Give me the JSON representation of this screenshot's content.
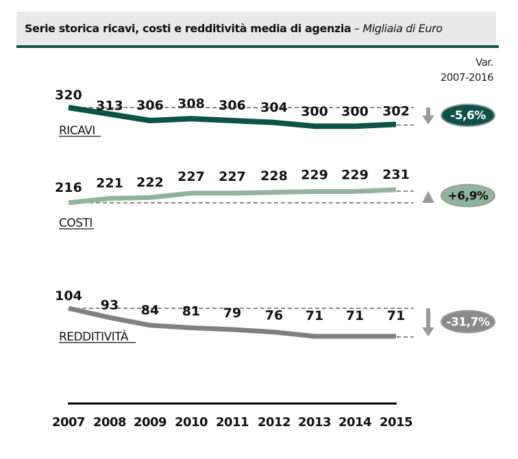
{
  "header": {
    "title_bold": "Serie storica ricavi, costi e redditività media di agenzia",
    "title_separator": " – ",
    "title_italic": "Migliaia di Euro"
  },
  "variation_header": {
    "line1": "Var.",
    "line2": "2007-2016"
  },
  "colors": {
    "header_bg": "#e8e8e8",
    "accent": "#0d5249",
    "ricavi": "#0d5249",
    "costi": "#8fb59c",
    "redditivita": "#808080",
    "arrow": "#9a9a9a"
  },
  "chart_data": {
    "type": "line",
    "title": "Serie storica ricavi, costi e redditività media di agenzia – Migliaia di Euro",
    "xlabel": "",
    "ylabel": "Migliaia di Euro",
    "categories": [
      "2007",
      "2008",
      "2009",
      "2010",
      "2011",
      "2012",
      "2013",
      "2014",
      "2015"
    ],
    "series": [
      {
        "name": "RICAVI",
        "values": [
          320,
          313,
          306,
          308,
          306,
          304,
          300,
          300,
          302
        ],
        "variation": "-5,6%",
        "direction": "down",
        "color": "#0d5249",
        "badge_fill": "#0d5249",
        "badge_text_color": "#ffffff"
      },
      {
        "name": "COSTI",
        "values": [
          216,
          221,
          222,
          227,
          227,
          228,
          229,
          229,
          231
        ],
        "variation": "+6,9%",
        "direction": "up",
        "color": "#8fb59c",
        "badge_fill": "#8fb59c",
        "badge_text_color": "#111111"
      },
      {
        "name": "REDDITIVITÀ",
        "values": [
          104,
          93,
          84,
          81,
          79,
          76,
          71,
          71,
          71
        ],
        "variation": "-31,7%",
        "direction": "down",
        "color": "#808080",
        "badge_fill": "#8a8a8a",
        "badge_text_color": "#ffffff"
      }
    ],
    "variation_period": "2007-2016",
    "grid": false,
    "legend": "inline-left"
  }
}
